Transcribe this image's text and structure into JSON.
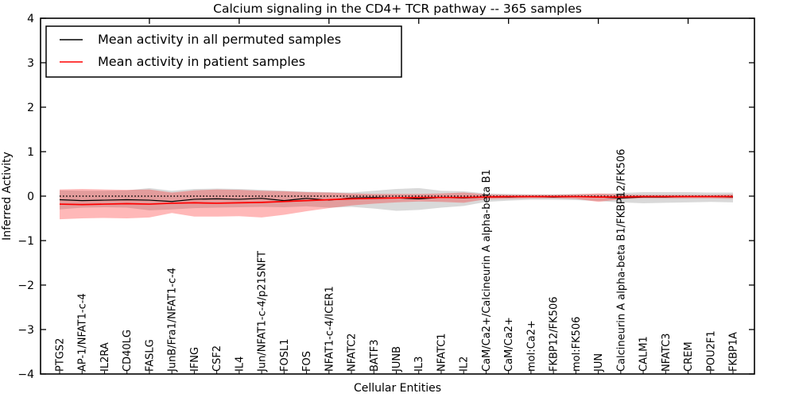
{
  "title": "Calcium signaling in the CD4+ TCR pathway -- 365 samples",
  "xlabel": "Cellular Entities",
  "ylabel": "Inferred Activity",
  "legend": [
    {
      "label": "Mean activity in all permuted samples",
      "color": "#000000"
    },
    {
      "label": "Mean activity in patient samples",
      "color": "#ff0000"
    }
  ],
  "colors": {
    "permuted_line": "#000000",
    "patient_line": "#ff0000",
    "permuted_band": "rgba(130,130,130,0.30)",
    "patient_band": "rgba(255,0,0,0.28)",
    "zero_line": "#000000"
  },
  "chart_data": {
    "type": "line",
    "title": "Calcium signaling in the CD4+ TCR pathway -- 365 samples",
    "xlabel": "Cellular Entities",
    "ylabel": "Inferred Activity",
    "ylim": [
      -4,
      4
    ],
    "yticks": [
      4,
      3,
      2,
      1,
      0,
      -1,
      -2,
      -3,
      -4
    ],
    "grid": false,
    "legend_position": "upper left",
    "zero_reference_line": true,
    "categories": [
      "PTGS2",
      "AP-1/NFAT1-c-4",
      "IL2RA",
      "CD40LG",
      "FASLG",
      "JunB/Fra1/NFAT1-c-4",
      "IFNG",
      "CSF2",
      "IL4",
      "Jun/NFAT1-c-4/p21SNFT",
      "FOSL1",
      "FOS",
      "NFAT1-c-4/ICER1",
      "NFATC2",
      "BATF3",
      "JUNB",
      "IL3",
      "NFATC1",
      "IL2",
      "CaM/Ca2+/Calcineurin A alpha-beta B1",
      "CaM/Ca2+",
      "mol:Ca2+",
      "FKBP12/FK506",
      "mol:FK506",
      "JUN",
      "Calcineurin A alpha-beta B1/FKBP12/FK506",
      "CALM1",
      "NFATC3",
      "CREM",
      "POU2F1",
      "FKBP1A"
    ],
    "series": [
      {
        "id": "permuted-mean",
        "name": "Mean activity in all permuted samples",
        "color": "#000000",
        "width": 1.2,
        "values": [
          -0.08,
          -0.1,
          -0.09,
          -0.08,
          -0.09,
          -0.12,
          -0.07,
          -0.06,
          -0.07,
          -0.05,
          -0.1,
          -0.05,
          -0.09,
          -0.04,
          -0.03,
          -0.04,
          -0.06,
          -0.03,
          -0.04,
          -0.02,
          -0.02,
          -0.01,
          -0.02,
          -0.01,
          -0.02,
          -0.04,
          -0.02,
          -0.02,
          -0.01,
          -0.01,
          -0.02
        ]
      },
      {
        "id": "patient-mean",
        "name": "Mean activity in patient samples",
        "color": "#ff0000",
        "width": 1.7,
        "values": [
          -0.18,
          -0.19,
          -0.18,
          -0.17,
          -0.18,
          -0.16,
          -0.15,
          -0.16,
          -0.15,
          -0.14,
          -0.12,
          -0.1,
          -0.08,
          -0.06,
          -0.05,
          -0.04,
          -0.03,
          -0.03,
          -0.03,
          -0.02,
          -0.01,
          -0.01,
          -0.01,
          -0.01,
          -0.02,
          -0.02,
          -0.01,
          -0.01,
          -0.01,
          -0.01,
          -0.01
        ]
      }
    ],
    "bands": [
      {
        "id": "permuted-spread",
        "name": "Permuted samples spread",
        "color": "rgba(130,130,130,0.30)",
        "upper": [
          0.13,
          0.12,
          0.12,
          0.13,
          0.18,
          0.12,
          0.16,
          0.17,
          0.16,
          0.14,
          0.12,
          0.1,
          0.09,
          0.08,
          0.12,
          0.16,
          0.18,
          0.12,
          0.11,
          0.06,
          0.05,
          0.04,
          0.04,
          0.05,
          0.05,
          0.07,
          0.09,
          0.09,
          0.09,
          0.08,
          0.08
        ],
        "lower": [
          -0.3,
          -0.26,
          -0.25,
          -0.26,
          -0.32,
          -0.3,
          -0.27,
          -0.26,
          -0.25,
          -0.24,
          -0.25,
          -0.23,
          -0.26,
          -0.24,
          -0.28,
          -0.33,
          -0.31,
          -0.26,
          -0.22,
          -0.13,
          -0.1,
          -0.08,
          -0.08,
          -0.09,
          -0.11,
          -0.14,
          -0.16,
          -0.15,
          -0.14,
          -0.13,
          -0.14
        ]
      },
      {
        "id": "patient-spread",
        "name": "Patient samples spread",
        "color": "rgba(255,0,0,0.28)",
        "upper": [
          0.15,
          0.16,
          0.15,
          0.14,
          0.15,
          0.08,
          0.13,
          0.15,
          0.14,
          0.12,
          0.11,
          0.09,
          0.08,
          0.06,
          0.05,
          0.05,
          0.05,
          0.06,
          0.08,
          0.04,
          0.03,
          0.03,
          0.03,
          0.04,
          0.06,
          0.04,
          0.03,
          0.03,
          0.03,
          0.03,
          0.04
        ],
        "lower": [
          -0.52,
          -0.5,
          -0.49,
          -0.5,
          -0.48,
          -0.38,
          -0.46,
          -0.46,
          -0.45,
          -0.48,
          -0.42,
          -0.34,
          -0.27,
          -0.21,
          -0.17,
          -0.14,
          -0.12,
          -0.13,
          -0.15,
          -0.07,
          -0.06,
          -0.05,
          -0.05,
          -0.06,
          -0.13,
          -0.07,
          -0.05,
          -0.05,
          -0.05,
          -0.05,
          -0.06
        ]
      }
    ]
  }
}
